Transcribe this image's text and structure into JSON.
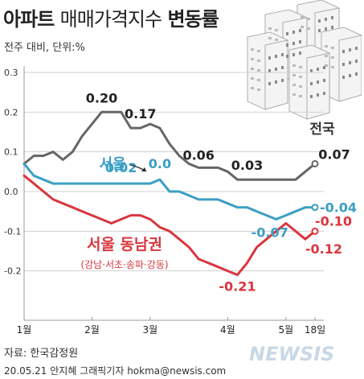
{
  "header": {
    "title_bold": "아파트",
    "title_light": "매매가격지수",
    "title_bold2": "변동률",
    "subtitle": "전주 대비, 단위:%"
  },
  "footer": {
    "source": "자료: 한국감정원",
    "credit": "20.05.21 안지혜 그래픽기자 hokma@newsis.com",
    "watermark": "NEWSIS"
  },
  "colors": {
    "national": "#666666",
    "seoul": "#3a9fc4",
    "southeast": "#d9363e",
    "grid": "#d0d0d0"
  },
  "chart_data": {
    "type": "line",
    "title": "아파트 매매가격지수 변동률",
    "ylabel": "전주 대비, 단위:%",
    "ylim": [
      -0.25,
      0.3
    ],
    "yticks": [
      "0.3",
      "0.2",
      "0.1",
      "0.0",
      "-0.1",
      "-0.2"
    ],
    "ytick_values": [
      0.3,
      0.2,
      0.1,
      0.0,
      -0.1,
      -0.2
    ],
    "xticks": [
      "1월",
      "2월",
      "3월",
      "4월",
      "5월",
      "18일"
    ],
    "xtick_weeks": [
      0,
      7,
      13,
      21,
      27,
      30
    ],
    "weeks": [
      0,
      1,
      2,
      3,
      4,
      5,
      6,
      7,
      8,
      9,
      10,
      11,
      12,
      13,
      14,
      15,
      16,
      17,
      18,
      19,
      20,
      21,
      22,
      23,
      24,
      25,
      26,
      27,
      28,
      29,
      30
    ],
    "series": [
      {
        "name": "전국",
        "values": [
          0.07,
          0.09,
          0.09,
          0.1,
          0.08,
          0.1,
          0.14,
          0.17,
          0.2,
          0.2,
          0.2,
          0.16,
          0.16,
          0.17,
          0.16,
          0.12,
          0.09,
          0.07,
          0.06,
          0.06,
          0.06,
          0.05,
          0.03,
          0.03,
          0.03,
          0.03,
          0.03,
          0.03,
          0.03,
          0.05,
          0.07
        ]
      },
      {
        "name": "서울",
        "values": [
          0.07,
          0.04,
          0.03,
          0.02,
          0.02,
          0.02,
          0.02,
          0.02,
          0.02,
          0.02,
          0.02,
          0.02,
          0.02,
          0.02,
          0.03,
          0.0,
          0.0,
          -0.01,
          -0.02,
          -0.02,
          -0.02,
          -0.03,
          -0.04,
          -0.04,
          -0.05,
          -0.06,
          -0.07,
          -0.06,
          -0.05,
          -0.04,
          -0.04
        ]
      },
      {
        "name": "서울 동남권",
        "values": [
          0.04,
          0.02,
          0.0,
          -0.02,
          -0.03,
          -0.04,
          -0.05,
          -0.06,
          -0.07,
          -0.08,
          -0.07,
          -0.06,
          -0.06,
          -0.07,
          -0.09,
          -0.1,
          -0.12,
          -0.14,
          -0.17,
          -0.18,
          -0.19,
          -0.2,
          -0.21,
          -0.18,
          -0.14,
          -0.12,
          -0.1,
          -0.08,
          -0.1,
          -0.12,
          -0.1
        ]
      }
    ],
    "annotations": [
      {
        "text": "0.20",
        "series": 0,
        "week": 8
      },
      {
        "text": "0.17",
        "series": 0,
        "week": 12
      },
      {
        "text": "0.06",
        "series": 0,
        "week": 18
      },
      {
        "text": "0.03",
        "series": 0,
        "week": 23
      },
      {
        "text": "0.07",
        "series": 0,
        "week": 30
      },
      {
        "text": "0.02",
        "series": 1,
        "week": 10
      },
      {
        "text": "0.0",
        "series": 1,
        "week": 14
      },
      {
        "text": "-0.07",
        "series": 1,
        "week": 26
      },
      {
        "text": "-0.04",
        "series": 1,
        "week": 30
      },
      {
        "text": "-0.21",
        "series": 2,
        "week": 22
      },
      {
        "text": "-0.10",
        "series": 2,
        "week": 30
      },
      {
        "text": "-0.12",
        "series": 2,
        "week": 29
      }
    ],
    "series_labels": {
      "national": "전국",
      "seoul": "서울",
      "southeast": "서울 동남권",
      "southeast_sub": "(강남·서초·송파·강동)"
    }
  }
}
